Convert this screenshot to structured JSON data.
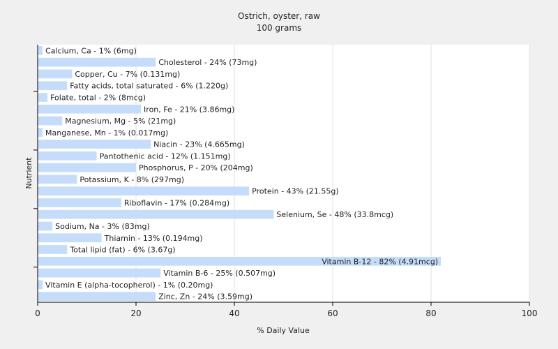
{
  "chart_data": {
    "type": "bar",
    "orientation": "horizontal",
    "title": "Ostrich, oyster, raw",
    "subtitle": "100 grams",
    "xlabel": "% Daily Value",
    "ylabel": "Nutrient",
    "xlim": [
      0,
      100
    ],
    "xticks": [
      0,
      20,
      40,
      60,
      80,
      100
    ],
    "grid": true,
    "bar_color": "#c5dcfa",
    "categories": [
      "Calcium, Ca",
      "Cholesterol",
      "Copper, Cu",
      "Fatty acids, total saturated",
      "Folate, total",
      "Iron, Fe",
      "Magnesium, Mg",
      "Manganese, Mn",
      "Niacin",
      "Pantothenic acid",
      "Phosphorus, P",
      "Potassium, K",
      "Protein",
      "Riboflavin",
      "Selenium, Se",
      "Sodium, Na",
      "Thiamin",
      "Total lipid (fat)",
      "Vitamin B-12",
      "Vitamin B-6",
      "Vitamin E (alpha-tocopherol)",
      "Zinc, Zn"
    ],
    "values": [
      1,
      24,
      7,
      6,
      2,
      21,
      5,
      1,
      23,
      12,
      20,
      8,
      43,
      17,
      48,
      3,
      13,
      6,
      82,
      25,
      1,
      24
    ],
    "labels": [
      "Calcium, Ca - 1% (6mg)",
      "Cholesterol - 24% (73mg)",
      "Copper, Cu - 7% (0.131mg)",
      "Fatty acids, total saturated - 6% (1.220g)",
      "Folate, total - 2% (8mcg)",
      "Iron, Fe - 21% (3.86mg)",
      "Magnesium, Mg - 5% (21mg)",
      "Manganese, Mn - 1% (0.017mg)",
      "Niacin - 23% (4.665mg)",
      "Pantothenic acid - 12% (1.151mg)",
      "Phosphorus, P - 20% (204mg)",
      "Potassium, K - 8% (297mg)",
      "Protein - 43% (21.55g)",
      "Riboflavin - 17% (0.284mg)",
      "Selenium, Se - 48% (33.8mcg)",
      "Sodium, Na - 3% (83mg)",
      "Thiamin - 13% (0.194mg)",
      "Total lipid (fat) - 6% (3.67g)",
      "Vitamin B-12 - 82% (4.91mcg)",
      "Vitamin B-6 - 25% (0.507mg)",
      "Vitamin E (alpha-tocopherol) - 1% (0.20mg)",
      "Zinc, Zn - 24% (3.59mg)"
    ]
  }
}
